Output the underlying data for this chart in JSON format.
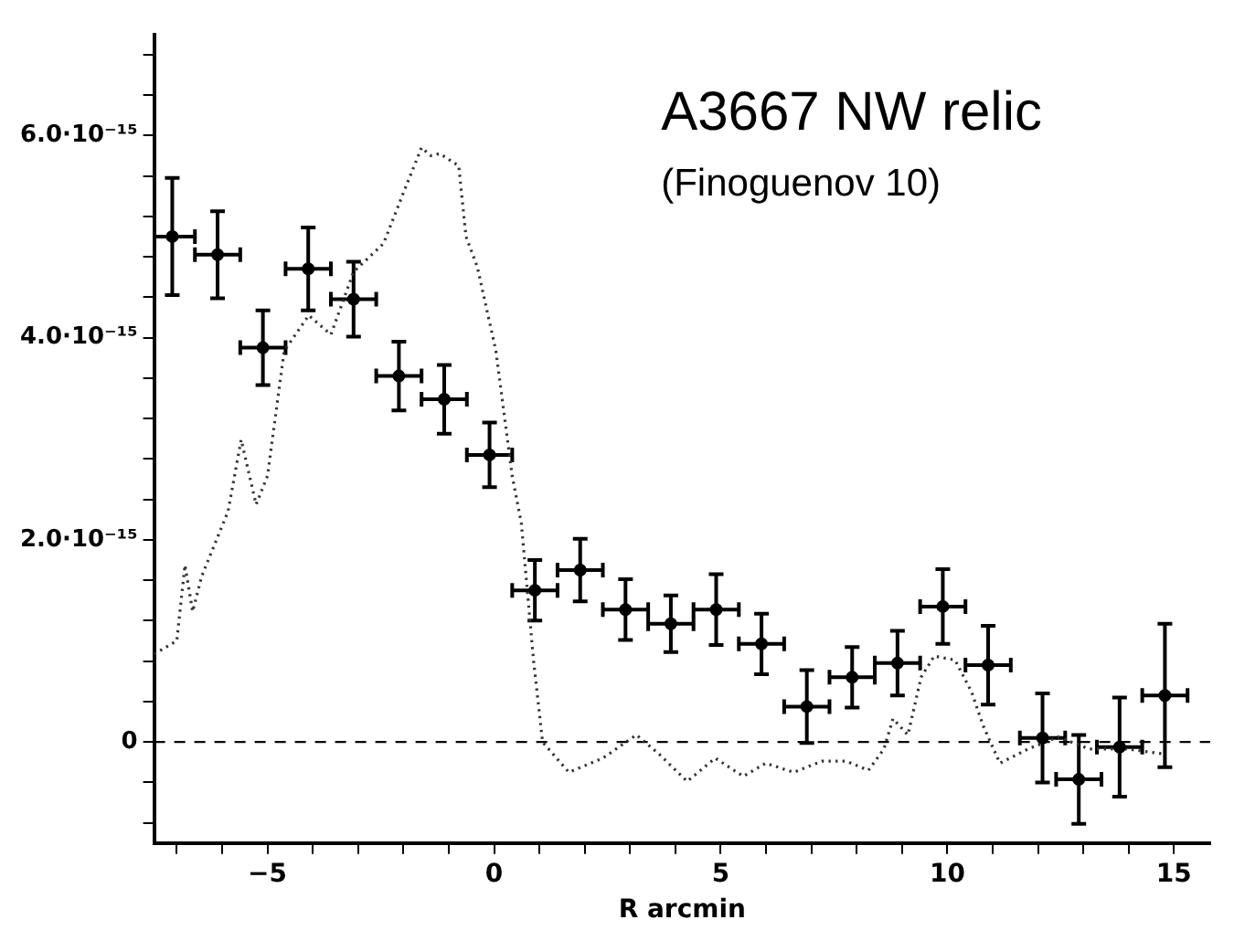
{
  "chart_data": {
    "type": "scatter",
    "title": "A3667 NW relic",
    "subtitle": "(Finoguenov 10)",
    "xlabel": "R arcmin",
    "xlim": [
      -7.5,
      15.8
    ],
    "ylim": [
      -1e-15,
      7e-15
    ],
    "xticks": [
      {
        "value": -7,
        "label": null
      },
      {
        "value": -6,
        "label": null
      },
      {
        "value": -5,
        "label": "−5"
      },
      {
        "value": -4,
        "label": null
      },
      {
        "value": -3,
        "label": null
      },
      {
        "value": -2,
        "label": null
      },
      {
        "value": -1,
        "label": null
      },
      0,
      {
        "value": 1,
        "label": null
      },
      {
        "value": 2,
        "label": null
      },
      {
        "value": 3,
        "label": null
      },
      {
        "value": 4,
        "label": null
      },
      5,
      {
        "value": 6,
        "label": null
      },
      {
        "value": 7,
        "label": null
      },
      {
        "value": 8,
        "label": null
      },
      {
        "value": 9,
        "label": null
      },
      10,
      {
        "value": 11,
        "label": null
      },
      {
        "value": 12,
        "label": null
      },
      {
        "value": 13,
        "label": null
      },
      {
        "value": 14,
        "label": null
      },
      15
    ],
    "yticks": [
      {
        "value": -8e-16,
        "label": null
      },
      {
        "value": -4e-16,
        "label": null
      },
      {
        "value": 0,
        "label": "0"
      },
      {
        "value": 4e-16,
        "label": null
      },
      {
        "value": 8e-16,
        "label": null
      },
      {
        "value": 1.2e-15,
        "label": null
      },
      {
        "value": 1.6e-15,
        "label": null
      },
      {
        "value": 2e-15,
        "label": "2.0·10⁻¹⁵"
      },
      {
        "value": 2.4e-15,
        "label": null
      },
      {
        "value": 2.8e-15,
        "label": null
      },
      {
        "value": 3.2e-15,
        "label": null
      },
      {
        "value": 3.6e-15,
        "label": null
      },
      {
        "value": 4e-15,
        "label": "4.0·10⁻¹⁵"
      },
      {
        "value": 4.4e-15,
        "label": null
      },
      {
        "value": 4.8e-15,
        "label": null
      },
      {
        "value": 5.2e-15,
        "label": null
      },
      {
        "value": 5.6e-15,
        "label": null
      },
      {
        "value": 6e-15,
        "label": "6.0·10⁻¹⁵"
      },
      {
        "value": 6.4e-15,
        "label": null
      },
      {
        "value": 6.8e-15,
        "label": null
      }
    ],
    "grid": false,
    "legend": false,
    "marker": "circle",
    "ref_lines": [
      {
        "axis": "y",
        "value": 0,
        "line_style": "dashed",
        "color": "#000000"
      }
    ],
    "series": [
      {
        "type": "scatter",
        "color": "#000000",
        "x": [
          -7.1,
          -6.1,
          -5.1,
          -4.1,
          -3.1,
          -2.1,
          -1.1,
          -0.1,
          0.9,
          1.9,
          2.9,
          3.9,
          4.9,
          5.9,
          6.9,
          7.9,
          8.9,
          9.9,
          10.9,
          12.1,
          12.9,
          13.8,
          14.8
        ],
        "values": [
          5e-15,
          4.82e-15,
          3.9e-15,
          4.68e-15,
          4.38e-15,
          3.62e-15,
          3.39e-15,
          2.84e-15,
          1.5e-15,
          1.7e-15,
          1.31e-15,
          1.17e-15,
          1.31e-15,
          9.7e-16,
          3.5e-16,
          6.4e-16,
          7.8e-16,
          1.34e-15,
          7.6e-16,
          4e-17,
          -3.7e-16,
          -5e-17,
          4.6e-16
        ],
        "errors": [
          5.8e-16,
          4.3e-16,
          3.7e-16,
          4.1e-16,
          3.7e-16,
          3.4e-16,
          3.4e-16,
          3.2e-16,
          3e-16,
          3.1e-16,
          3e-16,
          2.8e-16,
          3.5e-16,
          3e-16,
          3.6e-16,
          3e-16,
          3.2e-16,
          3.7e-16,
          3.9e-16,
          4.4e-16,
          4.4e-16,
          4.9e-16,
          7.1e-16
        ],
        "xerrors": [
          0.5,
          0.5,
          0.5,
          0.5,
          0.5,
          0.5,
          0.5,
          0.5,
          0.5,
          0.5,
          0.5,
          0.5,
          0.5,
          0.5,
          0.5,
          0.5,
          0.5,
          0.5,
          0.5,
          0.5,
          0.5,
          0.5,
          0.5
        ]
      },
      {
        "type": "line",
        "color": "#333333",
        "line_style": "dotted",
        "marker": "none",
        "x": [
          -7.5,
          -7.0,
          -6.82,
          -6.65,
          -6.45,
          -5.87,
          -5.58,
          -5.25,
          -5.0,
          -4.63,
          -4.09,
          -3.6,
          -3.1,
          -2.44,
          -2.02,
          -1.6,
          -1.4,
          -1.2,
          -0.78,
          -0.62,
          -0.37,
          0.04,
          0.4,
          0.6,
          0.87,
          1.07,
          1.65,
          2.4,
          3.14,
          3.64,
          4.26,
          4.88,
          5.5,
          5.99,
          6.61,
          7.23,
          7.77,
          8.26,
          8.6,
          8.8,
          9.13,
          9.42,
          9.71,
          10.17,
          10.54,
          10.79,
          11.16,
          11.78,
          12.44,
          13.14,
          13.97,
          14.8
        ],
        "values": [
          8.7e-16,
          1e-15,
          1.75e-15,
          1.29e-15,
          1.64e-15,
          2.28e-15,
          2.99e-15,
          2.35e-15,
          2.63e-15,
          3.87e-15,
          4.22e-15,
          4.03e-15,
          4.65e-15,
          4.93e-15,
          5.41e-15,
          5.88e-15,
          5.8e-15,
          5.82e-15,
          5.7e-15,
          5e-15,
          4.7e-15,
          3.87e-15,
          2.63e-15,
          2.17e-15,
          8.1e-16,
          0,
          -3e-16,
          -1.6e-16,
          7e-17,
          -1.2e-16,
          -3.9e-16,
          -1.6e-16,
          -3.4e-16,
          -2.1e-16,
          -3e-16,
          -1.9e-16,
          -1.9e-16,
          -2.8e-16,
          -7e-17,
          2.3e-16,
          7e-17,
          6.4e-16,
          8.5e-16,
          8.1e-16,
          4.9e-16,
          1.6e-16,
          -2.1e-16,
          -7e-17,
          5e-17,
          -7e-17,
          -7e-17,
          -1.2e-16
        ]
      }
    ]
  }
}
